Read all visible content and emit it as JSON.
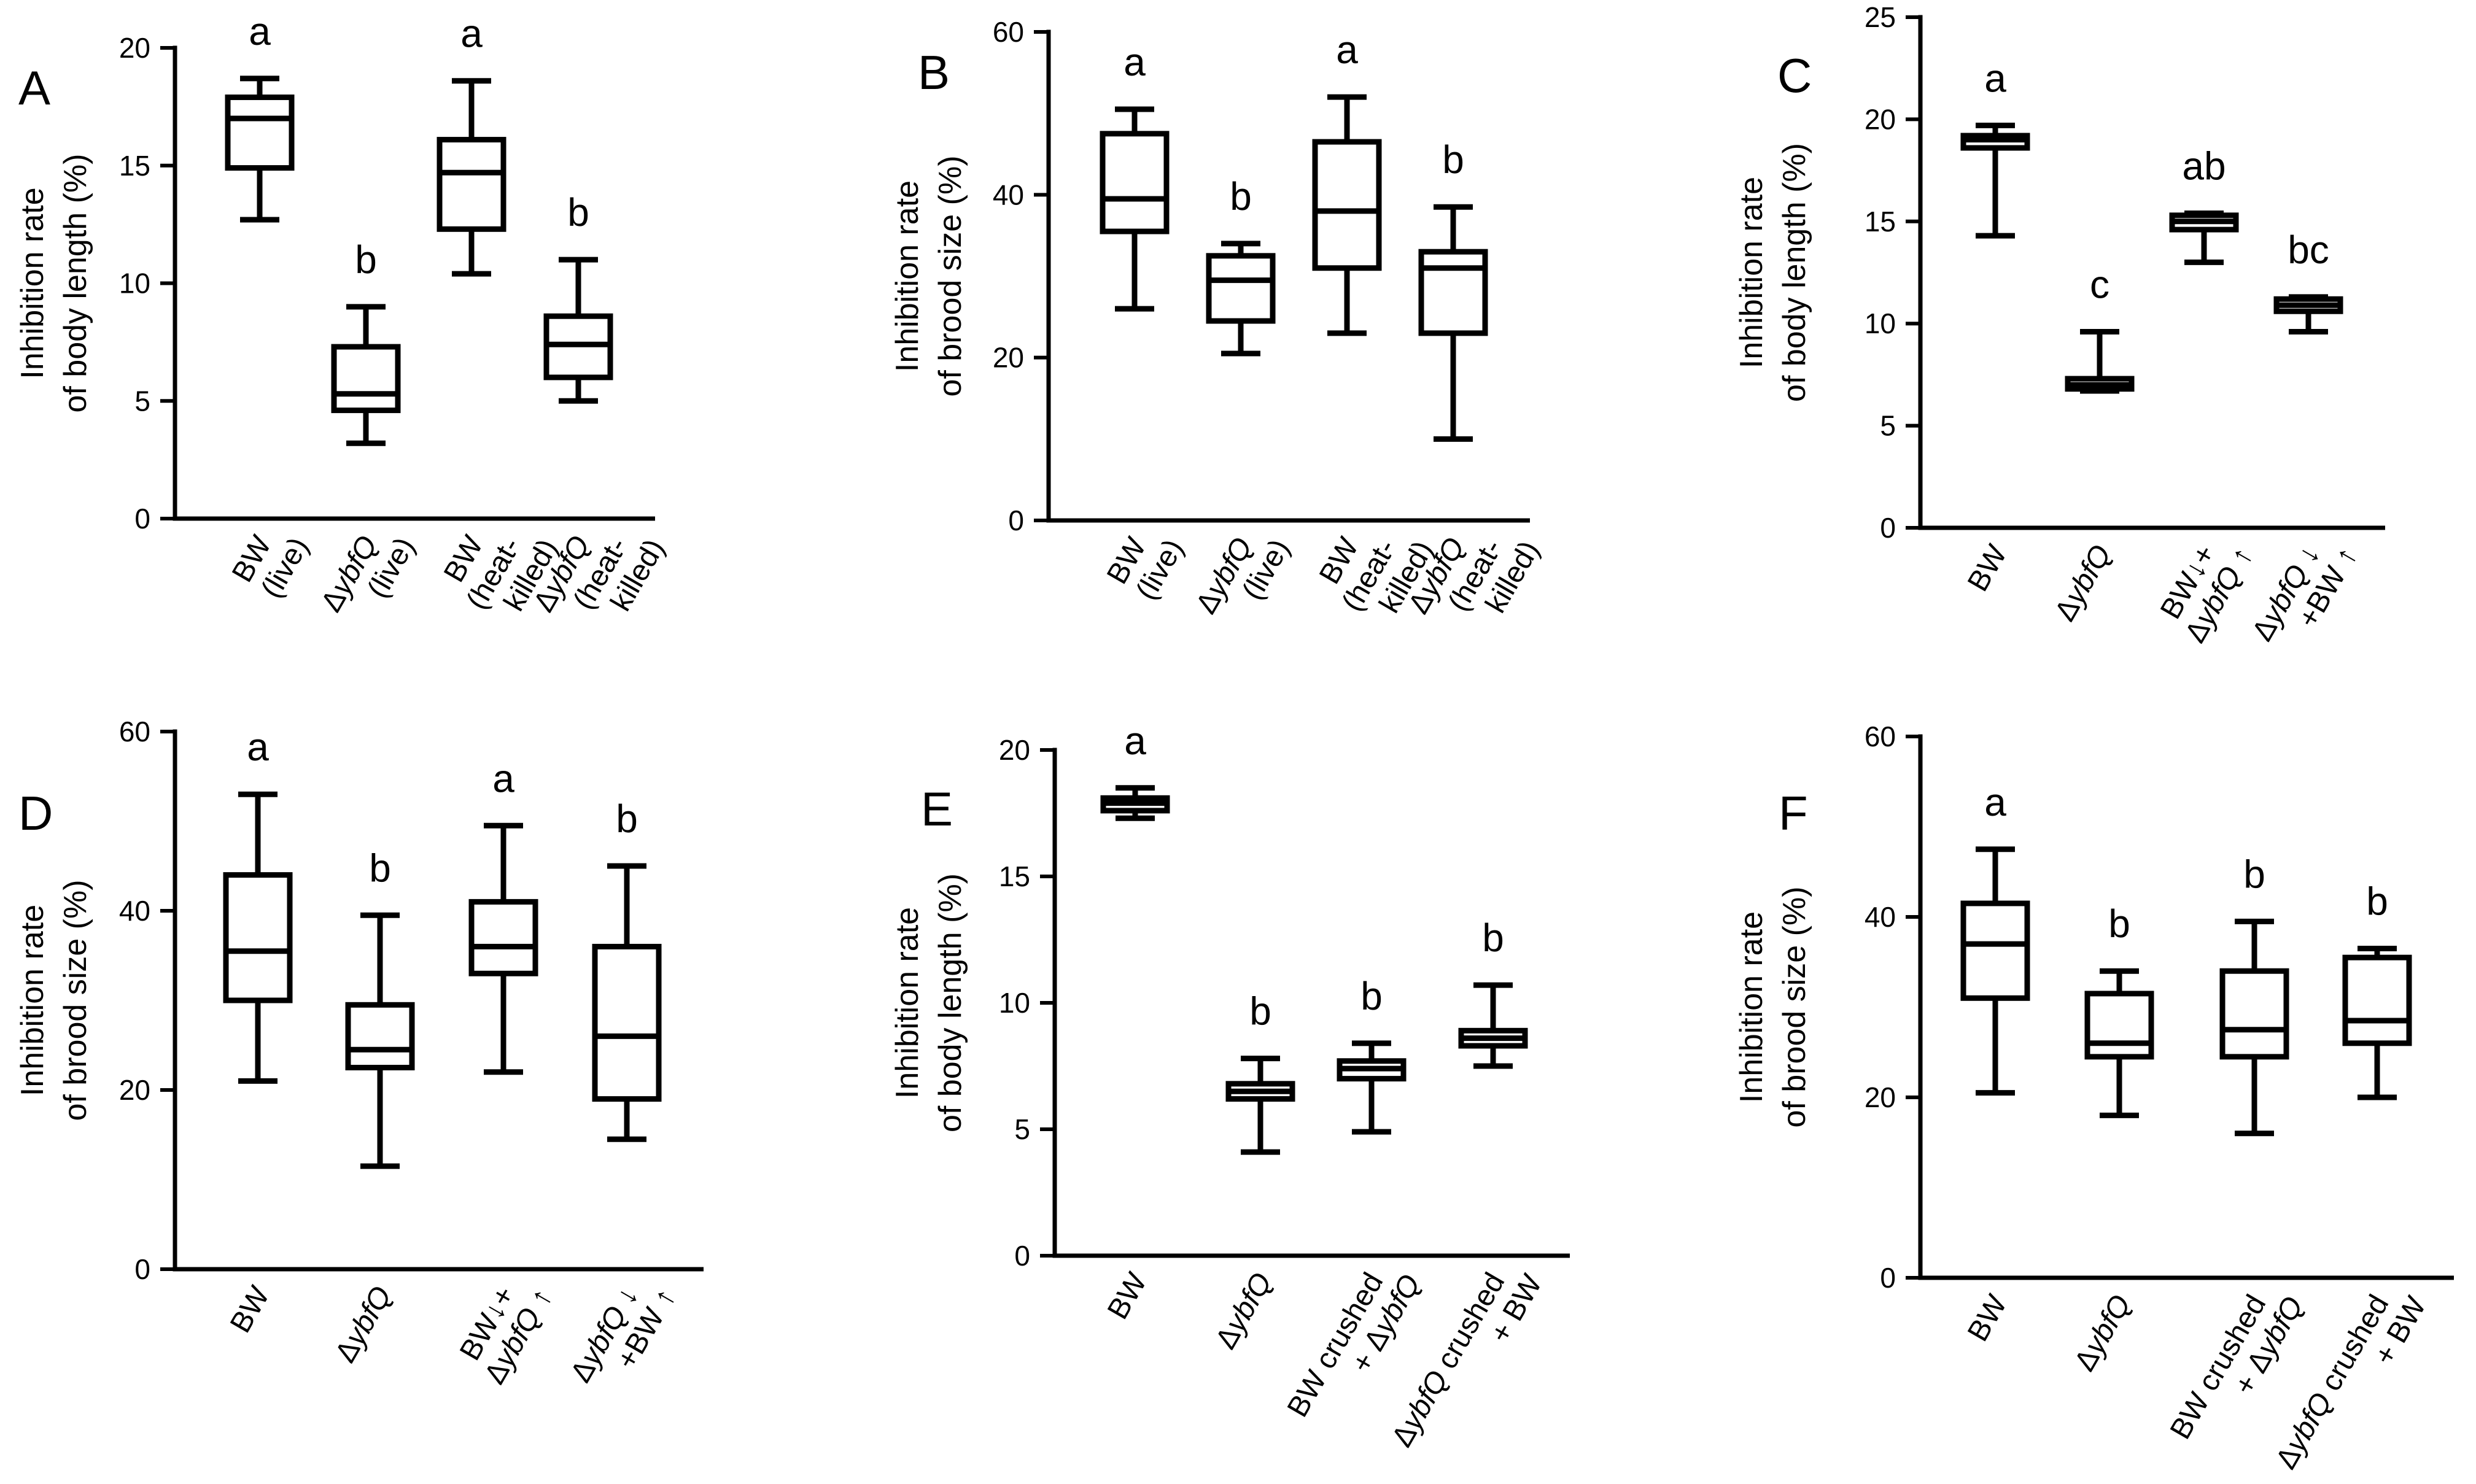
{
  "chart_data": [
    {
      "panel": "A",
      "type": "box",
      "ylabel_lines": [
        "Inhibition rate",
        "of body length (%)"
      ],
      "ylim": [
        0,
        20
      ],
      "yticks": [
        0,
        5,
        10,
        15,
        20
      ],
      "categories": [
        {
          "lines": [
            [
              {
                "t": "BW",
                "i": false
              }
            ],
            [
              {
                "t": "(live)",
                "i": false
              }
            ]
          ]
        },
        {
          "lines": [
            [
              {
                "t": "Δ",
                "i": false
              },
              {
                "t": "ybfQ",
                "i": true
              }
            ],
            [
              {
                "t": "(live)",
                "i": false
              }
            ]
          ]
        },
        {
          "lines": [
            [
              {
                "t": "BW",
                "i": false
              }
            ],
            [
              {
                "t": "(heat-",
                "i": false
              }
            ],
            [
              {
                "t": "killed)",
                "i": false
              }
            ]
          ]
        },
        {
          "lines": [
            [
              {
                "t": "Δ",
                "i": false
              },
              {
                "t": "ybfQ",
                "i": true
              }
            ],
            [
              {
                "t": "(heat-",
                "i": false
              }
            ],
            [
              {
                "t": "killed)",
                "i": false
              }
            ]
          ]
        }
      ],
      "boxes": [
        {
          "min": 12.7,
          "q1": 14.9,
          "median": 17.0,
          "q3": 17.9,
          "max": 18.7
        },
        {
          "min": 3.2,
          "q1": 4.6,
          "median": 5.3,
          "q3": 7.3,
          "max": 9.0
        },
        {
          "min": 10.4,
          "q1": 12.3,
          "median": 14.7,
          "q3": 16.1,
          "max": 18.6
        },
        {
          "min": 5.0,
          "q1": 6.0,
          "median": 7.4,
          "q3": 8.6,
          "max": 11.0
        }
      ],
      "letters": [
        "a",
        "b",
        "a",
        "b"
      ]
    },
    {
      "panel": "B",
      "type": "box",
      "ylabel_lines": [
        "Inhibition rate",
        "of brood size (%)"
      ],
      "ylim": [
        0,
        60
      ],
      "yticks": [
        0,
        20,
        40,
        60
      ],
      "categories": [
        {
          "lines": [
            [
              {
                "t": "BW",
                "i": false
              }
            ],
            [
              {
                "t": "(live)",
                "i": false
              }
            ]
          ]
        },
        {
          "lines": [
            [
              {
                "t": "Δ",
                "i": false
              },
              {
                "t": "ybfQ",
                "i": true
              }
            ],
            [
              {
                "t": "(live)",
                "i": false
              }
            ]
          ]
        },
        {
          "lines": [
            [
              {
                "t": "BW",
                "i": false
              }
            ],
            [
              {
                "t": "(heat-",
                "i": false
              }
            ],
            [
              {
                "t": "killed)",
                "i": false
              }
            ]
          ]
        },
        {
          "lines": [
            [
              {
                "t": "Δ",
                "i": false
              },
              {
                "t": "ybfQ",
                "i": true
              }
            ],
            [
              {
                "t": "(heat-",
                "i": false
              }
            ],
            [
              {
                "t": "killed)",
                "i": false
              }
            ]
          ]
        }
      ],
      "boxes": [
        {
          "min": 26,
          "q1": 35.5,
          "median": 39.5,
          "q3": 47.5,
          "max": 50.5
        },
        {
          "min": 20.5,
          "q1": 24.5,
          "median": 29.5,
          "q3": 32.5,
          "max": 34
        },
        {
          "min": 23,
          "q1": 31,
          "median": 38,
          "q3": 46.5,
          "max": 52
        },
        {
          "min": 10,
          "q1": 23,
          "median": 31,
          "q3": 33,
          "max": 38.5
        }
      ],
      "letters": [
        "a",
        "b",
        "a",
        "b"
      ]
    },
    {
      "panel": "C",
      "type": "box",
      "ylabel_lines": [
        "Inhibition rate",
        "of body length (%)"
      ],
      "ylim": [
        0,
        25
      ],
      "yticks": [
        0,
        5,
        10,
        15,
        20,
        25
      ],
      "categories": [
        {
          "lines": [
            [
              {
                "t": "BW",
                "i": false
              }
            ]
          ]
        },
        {
          "lines": [
            [
              {
                "t": "Δ",
                "i": false
              },
              {
                "t": "ybfQ",
                "i": true
              }
            ]
          ]
        },
        {
          "lines": [
            [
              {
                "t": "BW↓+",
                "i": false
              }
            ],
            [
              {
                "t": "Δ",
                "i": false
              },
              {
                "t": "ybfQ",
                "i": true
              },
              {
                "t": " ↑",
                "i": false
              }
            ]
          ]
        },
        {
          "lines": [
            [
              {
                "t": "Δ",
                "i": false
              },
              {
                "t": "ybfQ",
                "i": true
              },
              {
                "t": " ↓",
                "i": false
              }
            ],
            [
              {
                "t": "+BW ↑",
                "i": false
              }
            ]
          ]
        }
      ],
      "boxes": [
        {
          "min": 14.3,
          "q1": 18.6,
          "median": 19.0,
          "q3": 19.2,
          "max": 19.7
        },
        {
          "min": 6.7,
          "q1": 6.8,
          "median": 7.0,
          "q3": 7.3,
          "max": 9.6
        },
        {
          "min": 13.0,
          "q1": 14.6,
          "median": 15.0,
          "q3": 15.3,
          "max": 15.4
        },
        {
          "min": 9.6,
          "q1": 10.6,
          "median": 10.9,
          "q3": 11.2,
          "max": 11.3
        }
      ],
      "letters": [
        "a",
        "c",
        "ab",
        "bc"
      ]
    },
    {
      "panel": "D",
      "type": "box",
      "ylabel_lines": [
        "Inhibition rate",
        "of brood size (%)"
      ],
      "ylim": [
        0,
        60
      ],
      "yticks": [
        0,
        20,
        40,
        60
      ],
      "categories": [
        {
          "lines": [
            [
              {
                "t": "BW",
                "i": false
              }
            ]
          ]
        },
        {
          "lines": [
            [
              {
                "t": "Δ",
                "i": false
              },
              {
                "t": "ybfQ",
                "i": true
              }
            ]
          ]
        },
        {
          "lines": [
            [
              {
                "t": "BW↓+",
                "i": false
              }
            ],
            [
              {
                "t": "Δ",
                "i": false
              },
              {
                "t": "ybfQ",
                "i": true
              },
              {
                "t": " ↑",
                "i": false
              }
            ]
          ]
        },
        {
          "lines": [
            [
              {
                "t": "Δ",
                "i": false
              },
              {
                "t": "ybfQ",
                "i": true
              },
              {
                "t": " ↓",
                "i": false
              }
            ],
            [
              {
                "t": "+BW ↑",
                "i": false
              }
            ]
          ]
        }
      ],
      "boxes": [
        {
          "min": 21,
          "q1": 30,
          "median": 35.5,
          "q3": 44,
          "max": 53
        },
        {
          "min": 11.5,
          "q1": 22.5,
          "median": 24.5,
          "q3": 29.5,
          "max": 39.5
        },
        {
          "min": 22,
          "q1": 33,
          "median": 36,
          "q3": 41,
          "max": 49.5
        },
        {
          "min": 14.5,
          "q1": 19,
          "median": 26,
          "q3": 36,
          "max": 45
        }
      ],
      "letters": [
        "a",
        "b",
        "a",
        "b"
      ]
    },
    {
      "panel": "E",
      "type": "box",
      "ylabel_lines": [
        "Inhibition rate",
        "of body length (%)"
      ],
      "ylim": [
        0,
        20
      ],
      "yticks": [
        0,
        5,
        10,
        15,
        20
      ],
      "categories": [
        {
          "lines": [
            [
              {
                "t": "BW",
                "i": false
              }
            ]
          ]
        },
        {
          "lines": [
            [
              {
                "t": "Δ",
                "i": false
              },
              {
                "t": "ybfQ",
                "i": true
              }
            ]
          ]
        },
        {
          "lines": [
            [
              {
                "t": "BW crushed",
                "i": false
              }
            ],
            [
              {
                "t": "+ Δ",
                "i": false
              },
              {
                "t": "ybfQ",
                "i": true
              }
            ]
          ]
        },
        {
          "lines": [
            [
              {
                "t": "Δ",
                "i": false
              },
              {
                "t": "ybfQ",
                "i": true
              },
              {
                "t": " crushed",
                "i": false
              }
            ],
            [
              {
                "t": "+ BW",
                "i": false
              }
            ]
          ]
        }
      ],
      "boxes": [
        {
          "min": 17.3,
          "q1": 17.6,
          "median": 17.9,
          "q3": 18.1,
          "max": 18.5
        },
        {
          "min": 4.1,
          "q1": 6.2,
          "median": 6.5,
          "q3": 6.8,
          "max": 7.8
        },
        {
          "min": 4.9,
          "q1": 7.0,
          "median": 7.4,
          "q3": 7.7,
          "max": 8.4
        },
        {
          "min": 7.5,
          "q1": 8.3,
          "median": 8.6,
          "q3": 8.9,
          "max": 10.7
        }
      ],
      "letters": [
        "a",
        "b",
        "b",
        "b"
      ]
    },
    {
      "panel": "F",
      "type": "box",
      "ylabel_lines": [
        "Inhibition rate",
        "of brood size (%)"
      ],
      "ylim": [
        0,
        60
      ],
      "yticks": [
        0,
        20,
        40,
        60
      ],
      "categories": [
        {
          "lines": [
            [
              {
                "t": "BW",
                "i": false
              }
            ]
          ]
        },
        {
          "lines": [
            [
              {
                "t": "Δ",
                "i": false
              },
              {
                "t": "ybfQ",
                "i": true
              }
            ]
          ]
        },
        {
          "lines": [
            [
              {
                "t": "BW crushed",
                "i": false
              }
            ],
            [
              {
                "t": "+ Δ",
                "i": false
              },
              {
                "t": "ybfQ",
                "i": true
              }
            ]
          ]
        },
        {
          "lines": [
            [
              {
                "t": "Δ",
                "i": false
              },
              {
                "t": "ybfQ",
                "i": true
              },
              {
                "t": " crushed",
                "i": false
              }
            ],
            [
              {
                "t": "+ BW",
                "i": false
              }
            ]
          ]
        }
      ],
      "boxes": [
        {
          "min": 20.5,
          "q1": 31,
          "median": 37,
          "q3": 41.5,
          "max": 47.5
        },
        {
          "min": 18,
          "q1": 24.5,
          "median": 26,
          "q3": 31.5,
          "max": 34
        },
        {
          "min": 16,
          "q1": 24.5,
          "median": 27.5,
          "q3": 34,
          "max": 39.5
        },
        {
          "min": 20,
          "q1": 26,
          "median": 28.5,
          "q3": 35.5,
          "max": 36.5
        }
      ],
      "letters": [
        "a",
        "b",
        "b",
        "b"
      ]
    }
  ]
}
